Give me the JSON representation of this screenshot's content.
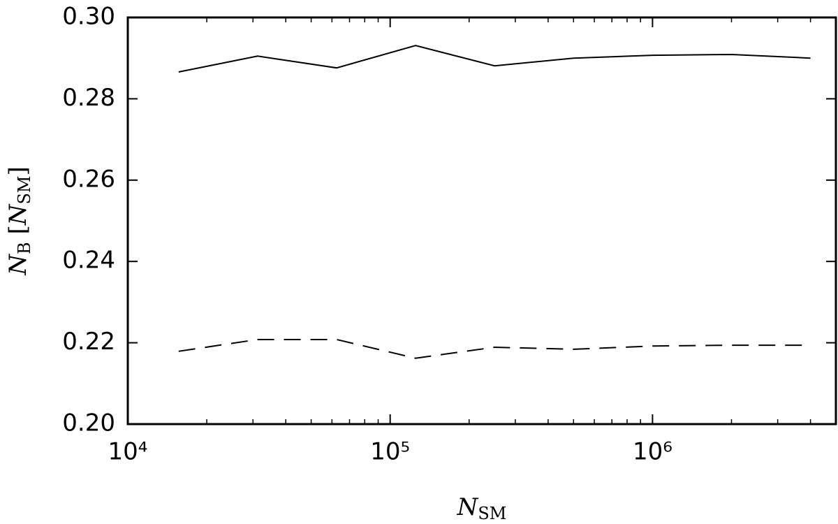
{
  "chart_data": {
    "type": "line",
    "x": [
      15625,
      31250,
      62500,
      125000,
      250000,
      500000,
      1000000,
      2000000,
      4000000
    ],
    "series": [
      {
        "color": "#000000",
        "style": "solid",
        "values": [
          0.2866,
          0.2905,
          0.2876,
          0.2931,
          0.2881,
          0.29,
          0.2907,
          0.2909,
          0.29
        ]
      },
      {
        "color": "#000000",
        "style": "dashed",
        "values": [
          0.2179,
          0.2208,
          0.2208,
          0.2162,
          0.2189,
          0.2184,
          0.2192,
          0.2194,
          0.2194
        ]
      }
    ],
    "xscale": "log",
    "xlim": [
      10000,
      5000000
    ],
    "xticks": [
      {
        "value": 10000,
        "label": "10⁴"
      },
      {
        "value": 100000,
        "label": "10⁵"
      },
      {
        "value": 1000000,
        "label": "10⁶"
      }
    ],
    "ylim": [
      0.2,
      0.3
    ],
    "yticks": [
      {
        "value": 0.2,
        "label": "0.20"
      },
      {
        "value": 0.22,
        "label": "0.22"
      },
      {
        "value": 0.24,
        "label": "0.24"
      },
      {
        "value": 0.26,
        "label": "0.26"
      },
      {
        "value": 0.28,
        "label": "0.28"
      },
      {
        "value": 0.3,
        "label": "0.30"
      }
    ],
    "xlabel": [
      {
        "text": "N",
        "style": "italic"
      },
      {
        "text": "SM",
        "style": "sub"
      }
    ],
    "ylabel": [
      {
        "text": "N",
        "style": "italic"
      },
      {
        "text": "B",
        "style": "sub"
      },
      {
        "text": " [",
        "style": "normal"
      },
      {
        "text": "N",
        "style": "italic"
      },
      {
        "text": "SM",
        "style": "sub"
      },
      {
        "text": "]",
        "style": "normal"
      }
    ],
    "grid": false
  }
}
